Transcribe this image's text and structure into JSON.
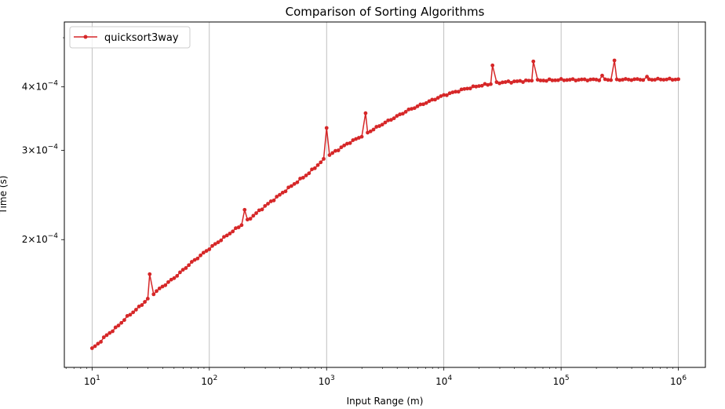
{
  "chart_data": {
    "type": "line",
    "title": "Comparison of Sorting Algorithms",
    "xlabel": "Input Range (m)",
    "ylabel": "Time (s)",
    "x_scale": "log",
    "y_scale": "log",
    "xlim": [
      5.8,
      1700000
    ],
    "ylim": [
      0.000112,
      0.000537
    ],
    "grid": {
      "x_major": true,
      "y": false
    },
    "legend_position": "upper-left",
    "x_ticks": [
      {
        "value": 10,
        "base": "10",
        "exp": "1"
      },
      {
        "value": 100,
        "base": "10",
        "exp": "2"
      },
      {
        "value": 1000,
        "base": "10",
        "exp": "3"
      },
      {
        "value": 10000,
        "base": "10",
        "exp": "4"
      },
      {
        "value": 100000,
        "base": "10",
        "exp": "5"
      },
      {
        "value": 1000000,
        "base": "10",
        "exp": "6"
      }
    ],
    "y_ticks": [
      {
        "value": 0.0002,
        "mant": "2×10",
        "exp": "−4"
      },
      {
        "value": 0.0003,
        "mant": "3×10",
        "exp": "−4"
      },
      {
        "value": 0.0004,
        "mant": "4×10",
        "exp": "−4"
      }
    ],
    "y_minor_ticks": [
      0.0005
    ],
    "series": [
      {
        "name": "quicksort3way",
        "color": "#d62728",
        "marker": "circle",
        "anchors": [
          [
            10,
            0.000122
          ],
          [
            11,
            0.000124
          ],
          [
            13,
            0.000129
          ],
          [
            16,
            0.000134
          ],
          [
            20,
            0.000141
          ],
          [
            25,
            0.000147
          ],
          [
            30,
            0.000153
          ],
          [
            35,
            0.000158
          ],
          [
            50,
            0.000168
          ],
          [
            70,
            0.00018
          ],
          [
            100,
            0.000192
          ],
          [
            150,
            0.000206
          ],
          [
            200,
            0.000216
          ],
          [
            300,
            0.000233
          ],
          [
            500,
            0.000255
          ],
          [
            700,
            0.00027
          ],
          [
            1000,
            0.000291
          ],
          [
            1500,
            0.000309
          ],
          [
            2000,
            0.00032
          ],
          [
            3000,
            0.000338
          ],
          [
            5000,
            0.00036
          ],
          [
            7000,
            0.000372
          ],
          [
            10000,
            0.000385
          ],
          [
            15000,
            0.000396
          ],
          [
            20000,
            0.000402
          ],
          [
            30000,
            0.000408
          ],
          [
            50000,
            0.000411
          ],
          [
            100000,
            0.000413
          ],
          [
            1000000,
            0.000414
          ]
        ],
        "spikes": [
          {
            "x": 31,
            "y": 0.000171
          },
          {
            "x": 200,
            "y": 0.000229
          },
          {
            "x": 1000,
            "y": 0.000332
          },
          {
            "x": 2150,
            "y": 0.000355
          },
          {
            "x": 26000,
            "y": 0.000441
          },
          {
            "x": 58000,
            "y": 0.000449
          },
          {
            "x": 285000,
            "y": 0.000451
          }
        ],
        "bumps": [
          {
            "x": 224000,
            "y": 0.000421
          },
          {
            "x": 540000,
            "y": 0.000419
          }
        ],
        "points_per_decade": 40,
        "noise": 0.0045
      }
    ]
  }
}
